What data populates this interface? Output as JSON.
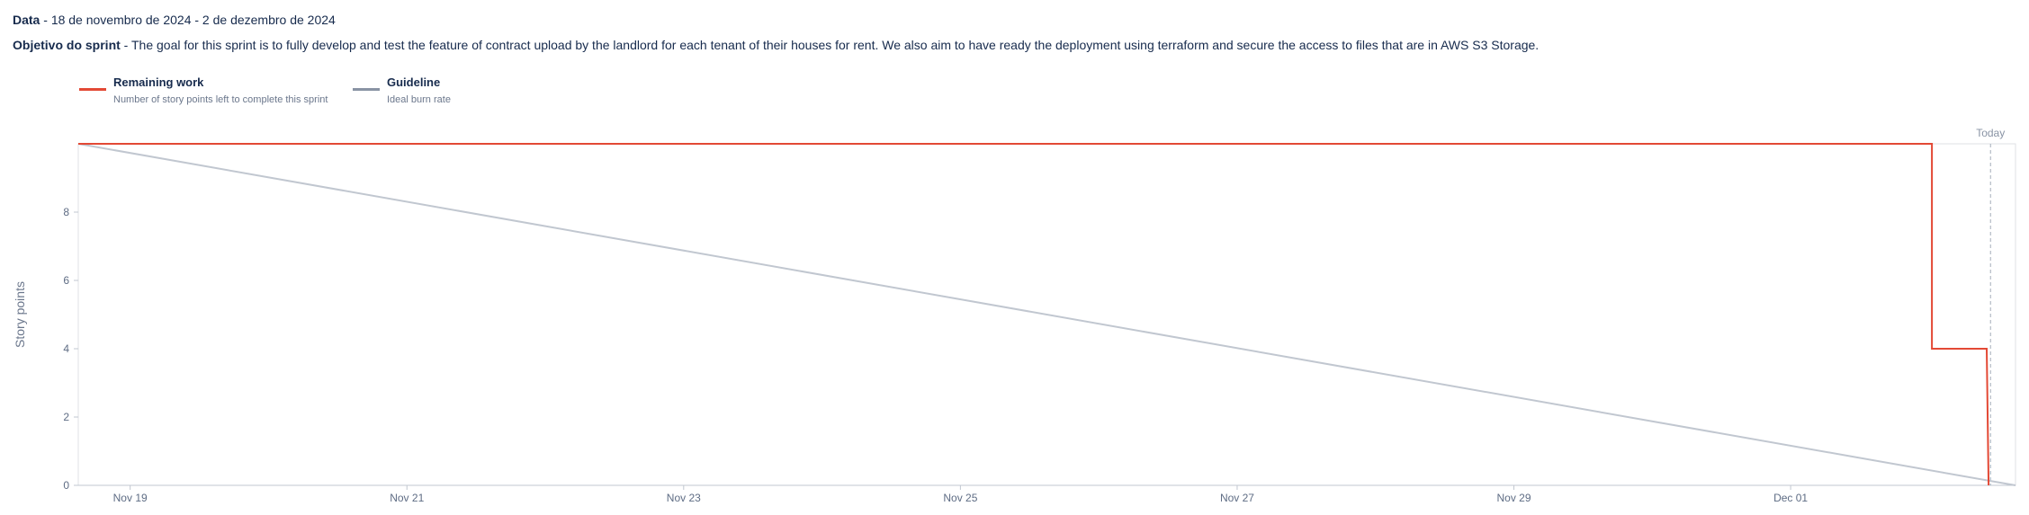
{
  "header": {
    "date_label": "Data",
    "date_separator": " - ",
    "date_value": "18 de novembro de 2024 - 2 de dezembro de 2024",
    "goal_label": "Objetivo do sprint",
    "goal_separator": " - ",
    "goal_value": "The goal for this sprint is to fully develop and test the feature of contract upload by the landlord for each tenant of their houses for rent. We also aim to have ready the deployment using terraform and secure the access to files that are in AWS S3 Storage."
  },
  "legend": [
    {
      "title": "Remaining work",
      "subtitle": "Number of story points left to complete this sprint",
      "color": "#e34935"
    },
    {
      "title": "Guideline",
      "subtitle": "Ideal burn rate",
      "color": "#8993a4"
    }
  ],
  "chart_data": {
    "type": "line",
    "ylabel": "Story points",
    "ylim": [
      0,
      10
    ],
    "yticks": [
      0,
      2,
      4,
      6,
      8
    ],
    "xlim": [
      "2024-11-18T15:00",
      "2024-12-02T15:00"
    ],
    "xticks": [
      {
        "date": "2024-11-19",
        "label": "Nov 19"
      },
      {
        "date": "2024-11-21",
        "label": "Nov 21"
      },
      {
        "date": "2024-11-23",
        "label": "Nov 23"
      },
      {
        "date": "2024-11-25",
        "label": "Nov 25"
      },
      {
        "date": "2024-11-27",
        "label": "Nov 27"
      },
      {
        "date": "2024-11-29",
        "label": "Nov 29"
      },
      {
        "date": "2024-12-01",
        "label": "Dec 01"
      }
    ],
    "today": {
      "label": "Today",
      "date": "2024-12-02T10:40"
    },
    "series": [
      {
        "name": "Remaining work",
        "color": "#e34935",
        "step": true,
        "points": [
          {
            "x": "2024-11-18T15:00",
            "y": 10
          },
          {
            "x": "2024-12-02T00:30",
            "y": 10
          },
          {
            "x": "2024-12-02T00:30",
            "y": 4
          },
          {
            "x": "2024-12-02T10:00",
            "y": 4
          },
          {
            "x": "2024-12-02T10:20",
            "y": 0
          }
        ]
      },
      {
        "name": "Guideline",
        "color": "#c1c7d0",
        "points": [
          {
            "x": "2024-11-18T15:00",
            "y": 10
          },
          {
            "x": "2024-12-02T15:00",
            "y": 0
          }
        ]
      }
    ]
  }
}
